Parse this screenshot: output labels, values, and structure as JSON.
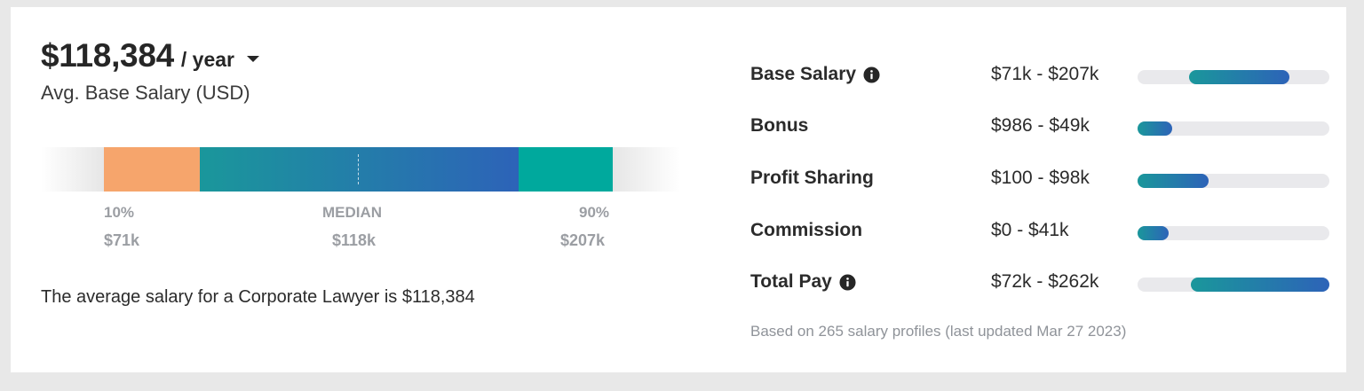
{
  "headline": {
    "amount": "$118,384",
    "period": "/ year",
    "subtitle": "Avg. Base Salary (USD)"
  },
  "distribution": {
    "low": {
      "label": "10%",
      "value": "$71k"
    },
    "median": {
      "label": "MEDIAN",
      "value": "$118k"
    },
    "high": {
      "label": "90%",
      "value": "$207k"
    },
    "colors": {
      "low": "#f6a56c",
      "mid_start": "#1a979b",
      "mid_end": "#2d63b8",
      "high": "#00a99d"
    }
  },
  "summary": "The average salary for a Corporate Lawyer is $118,384",
  "compensation": [
    {
      "label": "Base Salary",
      "has_info": true,
      "range": "$71k - $207k",
      "fill_start": 0.27,
      "fill_end": 0.79
    },
    {
      "label": "Bonus",
      "has_info": false,
      "range": "$986 - $49k",
      "fill_start": 0.0,
      "fill_end": 0.18
    },
    {
      "label": "Profit Sharing",
      "has_info": false,
      "range": "$100 - $98k",
      "fill_start": 0.0,
      "fill_end": 0.37
    },
    {
      "label": "Commission",
      "has_info": false,
      "range": "$0 - $41k",
      "fill_start": 0.0,
      "fill_end": 0.16
    },
    {
      "label": "Total Pay",
      "has_info": true,
      "range": "$72k - $262k",
      "fill_start": 0.28,
      "fill_end": 1.0
    }
  ],
  "footnote": "Based on 265 salary profiles (last updated Mar 27 2023)",
  "icons": {
    "info": "info-circle-icon",
    "period_toggle": "chevron-down-icon"
  }
}
